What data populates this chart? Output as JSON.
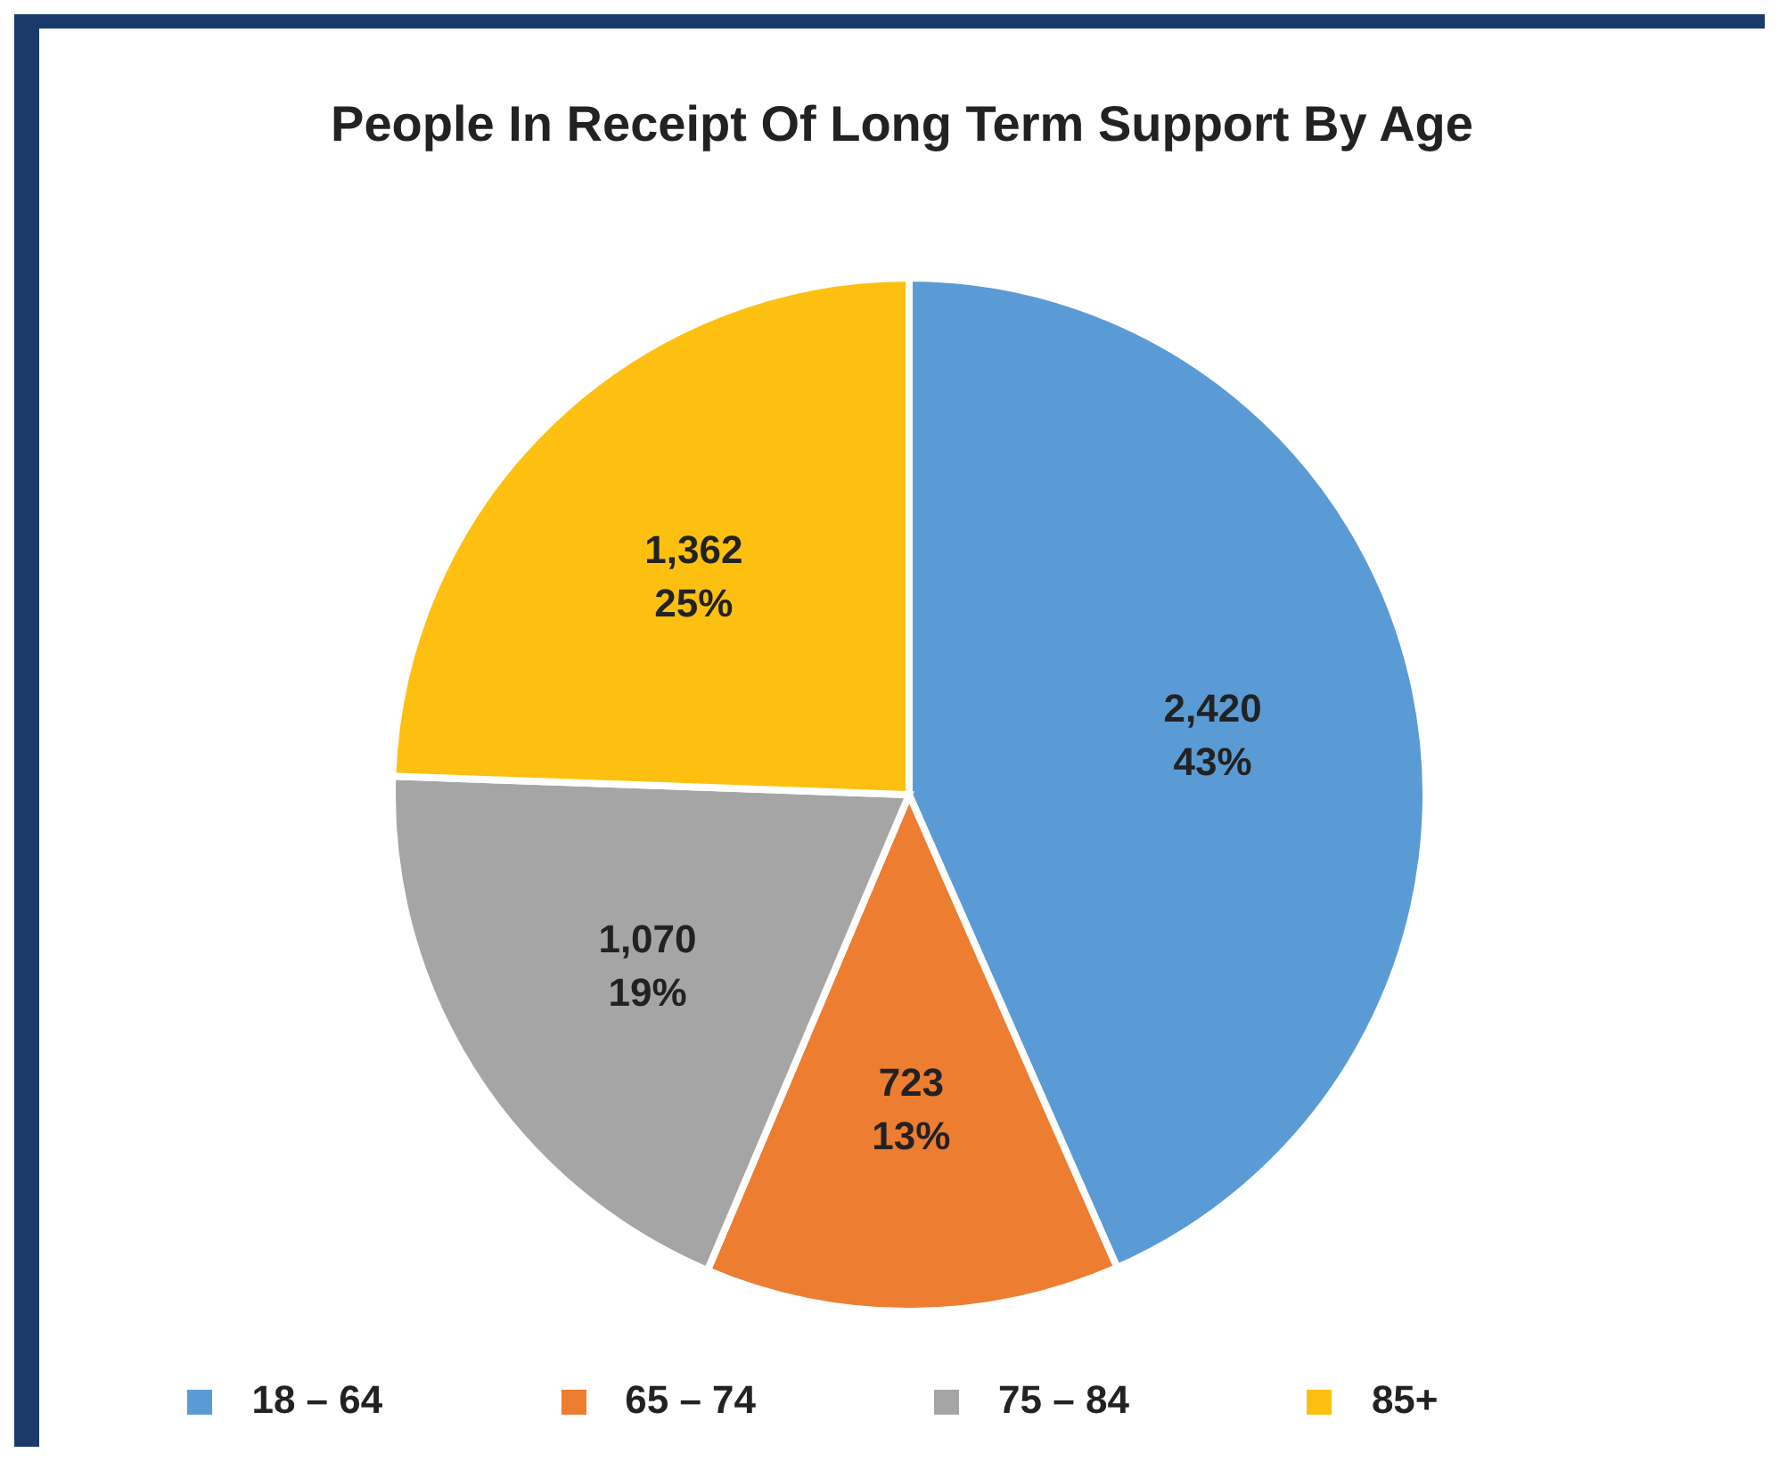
{
  "chart_data": {
    "type": "pie",
    "title": "People In Receipt Of Long Term Support By Age",
    "categories": [
      "18 – 64",
      "65 – 74",
      "75 – 84",
      "85+"
    ],
    "values": [
      2420,
      723,
      1070,
      1362
    ],
    "colors": [
      "#5b9bd5",
      "#ed7d31",
      "#a5a5a5",
      "#fdc010"
    ],
    "value_labels": [
      "2,420\n43%",
      "723\n13%",
      "1,070\n19%",
      "1,362\n25%"
    ],
    "legend": "bottom"
  }
}
